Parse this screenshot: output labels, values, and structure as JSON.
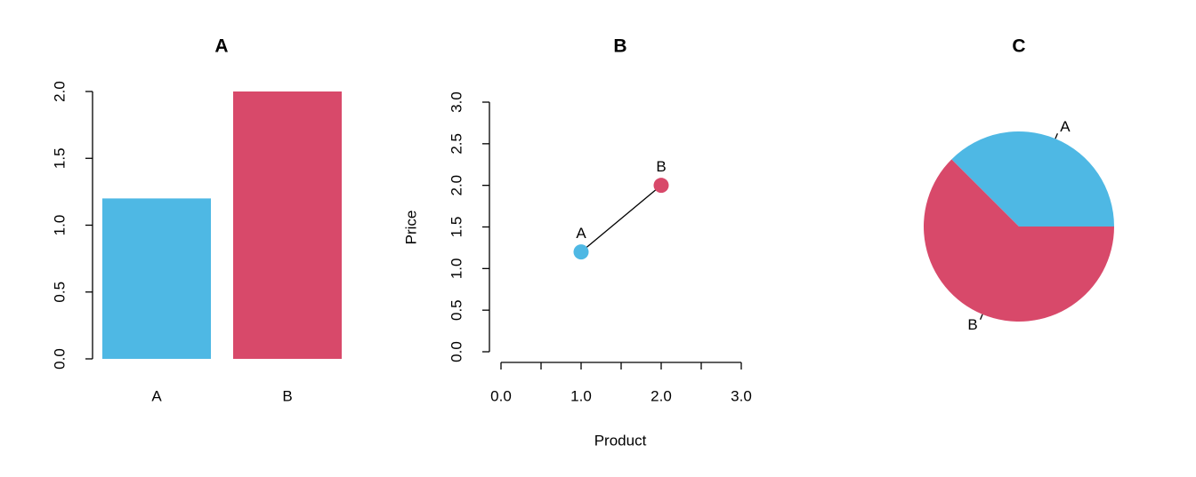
{
  "chart_data": [
    {
      "type": "bar",
      "title": "A",
      "categories": [
        "A",
        "B"
      ],
      "values": [
        1.2,
        2.0
      ],
      "colors": [
        "#4EB8E4",
        "#D8496A"
      ],
      "ylim": [
        0,
        2
      ],
      "yticks": [
        {
          "value": 0,
          "label": "0.0"
        },
        {
          "value": 0.5,
          "label": "0.5"
        },
        {
          "value": 1,
          "label": "1.0"
        },
        {
          "value": 1.5,
          "label": "1.5"
        },
        {
          "value": 2,
          "label": "2.0"
        }
      ]
    },
    {
      "type": "line",
      "title": "B",
      "x_label": "Product",
      "y_label": "Price",
      "point_labels": [
        "A",
        "B"
      ],
      "x": [
        1,
        2
      ],
      "y": [
        1.2,
        2.0
      ],
      "colors": [
        "#4EB8E4",
        "#D8496A"
      ],
      "line_color": "#000000",
      "xlim": [
        0,
        3
      ],
      "ylim": [
        0,
        3
      ],
      "xticks": [
        {
          "value": 0,
          "label": "0.0"
        },
        {
          "value": 1,
          "label": "1.0"
        },
        {
          "value": 2,
          "label": "2.0"
        },
        {
          "value": 3,
          "label": "3.0"
        }
      ],
      "xminor_ticks": [
        0.5,
        1.5,
        2.5
      ],
      "yticks": [
        {
          "value": 0,
          "label": "0.0"
        },
        {
          "value": 0.5,
          "label": "0.5"
        },
        {
          "value": 1,
          "label": "1.0"
        },
        {
          "value": 1.5,
          "label": "1.5"
        },
        {
          "value": 2,
          "label": "2.0"
        },
        {
          "value": 2.5,
          "label": "2.5"
        },
        {
          "value": 3,
          "label": "3.0"
        }
      ]
    },
    {
      "type": "pie",
      "title": "C",
      "categories": [
        "A",
        "B"
      ],
      "values": [
        1.2,
        2.0
      ],
      "colors": [
        "#4EB8E4",
        "#D8496A"
      ]
    }
  ]
}
